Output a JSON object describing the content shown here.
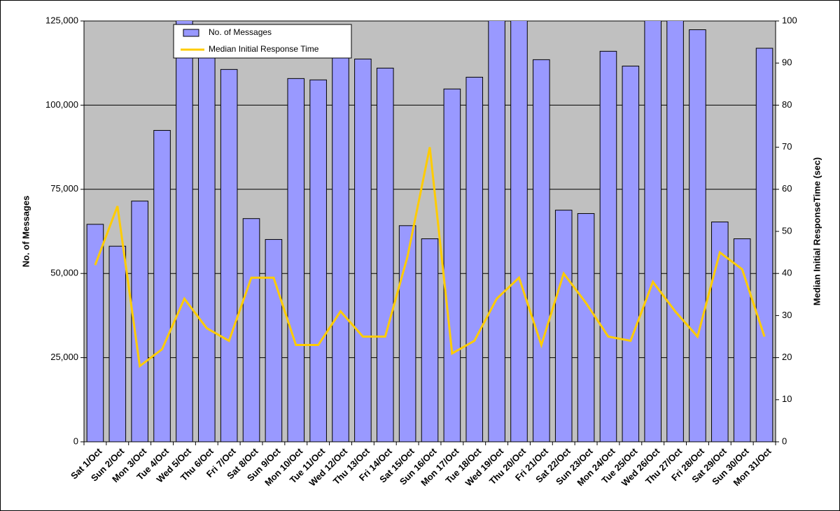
{
  "chart_data": {
    "type": "bar-line",
    "categories": [
      "Sat 1/Oct",
      "Sun 2/Oct",
      "Mon 3/Oct",
      "Tue 4/Oct",
      "Wed 5/Oct",
      "Thu 6/Oct",
      "Fri 7/Oct",
      "Sat 8/Oct",
      "Sun 9/Oct",
      "Mon 10/Oct",
      "Tue 11/Oct",
      "Wed 12/Oct",
      "Thu 13/Oct",
      "Fri 14/Oct",
      "Sat 15/Oct",
      "Sun 16/Oct",
      "Mon 17/Oct",
      "Tue 18/Oct",
      "Wed 19/Oct",
      "Thu 20/Oct",
      "Fri 21/Oct",
      "Sat 22/Oct",
      "Sun 23/Oct",
      "Mon 24/Oct",
      "Tue 25/Oct",
      "Wed 26/Oct",
      "Thu 27/Oct",
      "Fri 28/Oct",
      "Sat 29/Oct",
      "Sun 30/Oct",
      "Mon 31/Oct"
    ],
    "series": [
      {
        "name": "No. of Messages",
        "type": "bar",
        "color": "#9999ff",
        "values": [
          64600,
          58100,
          71500,
          92500,
          130000,
          120000,
          110600,
          66300,
          60100,
          107900,
          107500,
          117700,
          113700,
          111000,
          64200,
          60300,
          104800,
          108300,
          130000,
          130000,
          113500,
          68800,
          67800,
          116000,
          111600,
          130000,
          130000,
          122400,
          65300,
          60300,
          116900
        ]
      },
      {
        "name": "Median Initial Response Time",
        "type": "line",
        "color": "#ffcc00",
        "axis": "y2",
        "values": [
          42,
          56,
          18,
          22,
          34,
          27,
          24,
          39,
          39,
          23,
          23,
          31,
          25,
          25,
          44,
          70,
          21,
          24,
          34,
          39,
          23,
          40,
          33,
          25,
          24,
          38,
          31,
          25,
          45,
          41,
          25
        ]
      }
    ],
    "y_label": "No. of Messages",
    "y2_label": "Median Initial ResponseTime (sec)",
    "ylim": [
      0,
      125000
    ],
    "yticks": [
      0,
      {
        "value": 25000,
        "label": "25,000"
      },
      {
        "value": 50000,
        "label": "50,000"
      },
      {
        "value": 75000,
        "label": "75,000"
      },
      {
        "value": 100000,
        "label": "100,000"
      },
      {
        "value": 125000,
        "label": "125,000"
      }
    ],
    "y2lim": [
      0,
      100
    ],
    "y2ticks": [
      0,
      10,
      20,
      30,
      40,
      50,
      60,
      70,
      80,
      90,
      100
    ],
    "grid": true,
    "legend": "upper left"
  }
}
